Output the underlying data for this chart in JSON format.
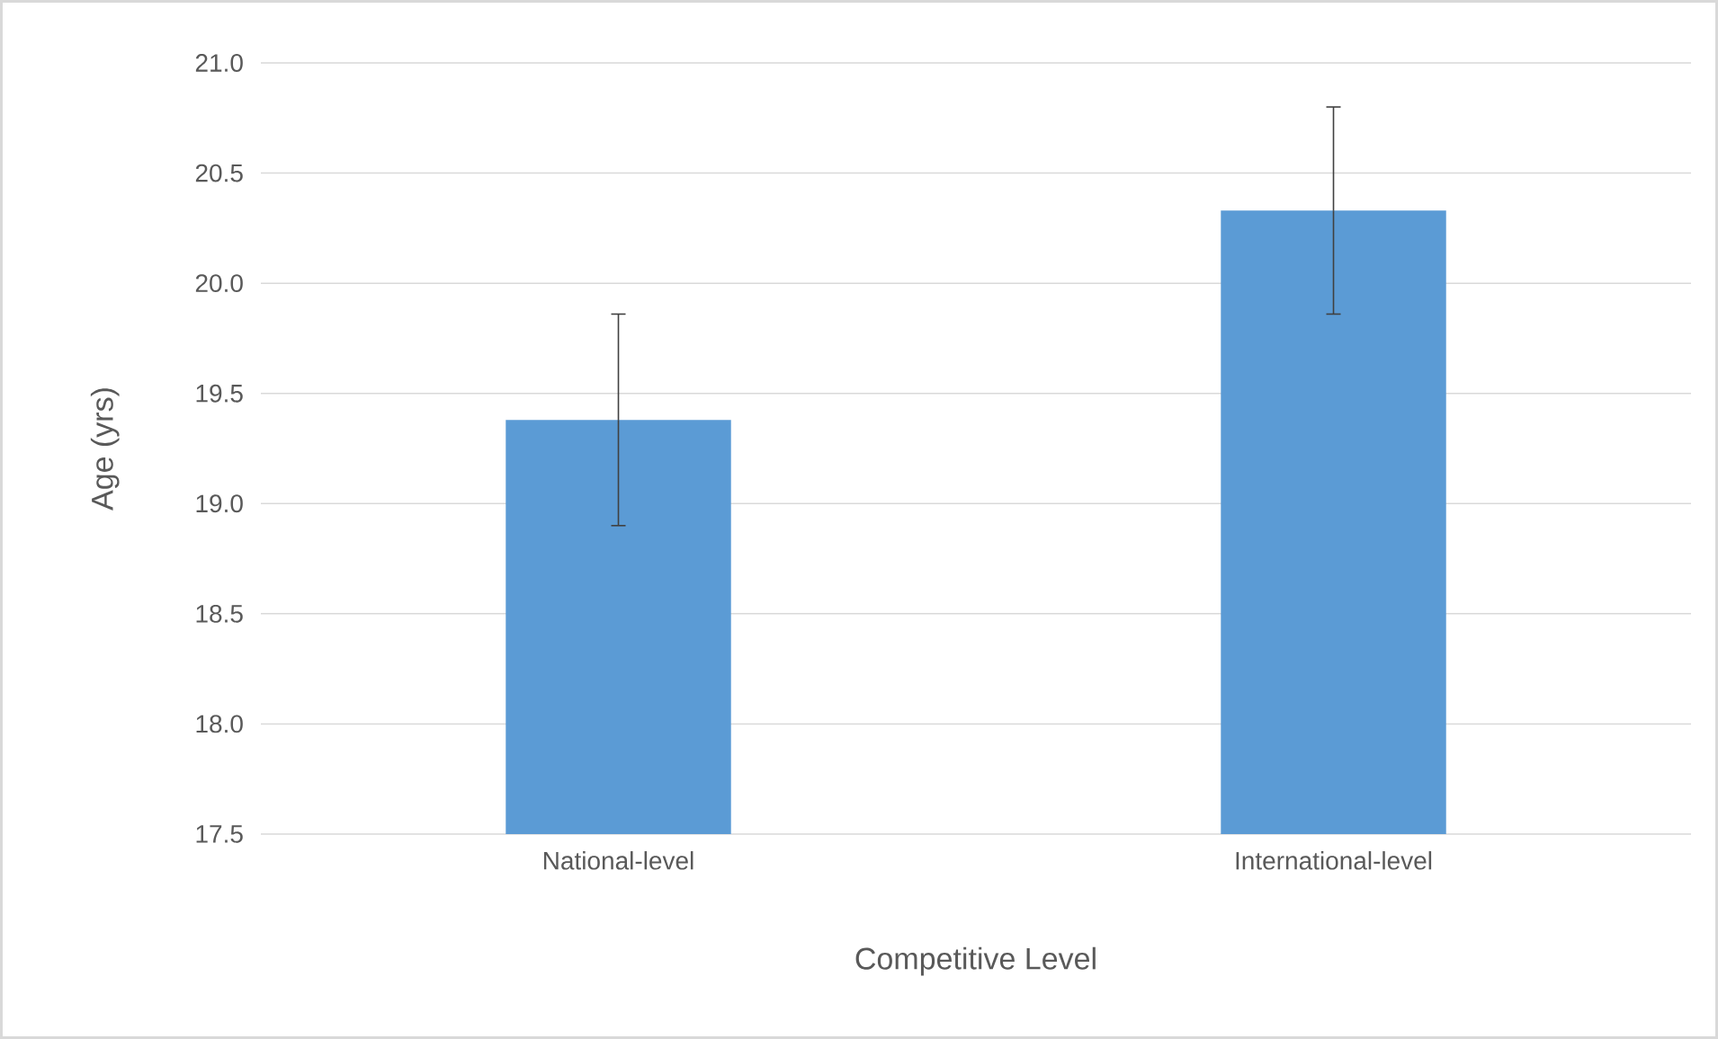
{
  "chart_data": {
    "type": "bar",
    "xlabel": "Competitive Level",
    "ylabel": "Age (yrs)",
    "categories": [
      "National-level",
      "International-level"
    ],
    "values": [
      19.38,
      20.33
    ],
    "errors": [
      0.48,
      0.47
    ],
    "color": "#5b9bd5",
    "ylim": [
      17.5,
      21.0
    ],
    "yticks": [
      {
        "value": 17.5,
        "label": "17.5"
      },
      {
        "value": 18.0,
        "label": "18.0"
      },
      {
        "value": 18.5,
        "label": "18.5"
      },
      {
        "value": 19.0,
        "label": "19.0"
      },
      {
        "value": 19.5,
        "label": "19.5"
      },
      {
        "value": 20.0,
        "label": "20.0"
      },
      {
        "value": 20.5,
        "label": "20.5"
      },
      {
        "value": 21.0,
        "label": "21.0"
      }
    ],
    "grid": "y"
  }
}
